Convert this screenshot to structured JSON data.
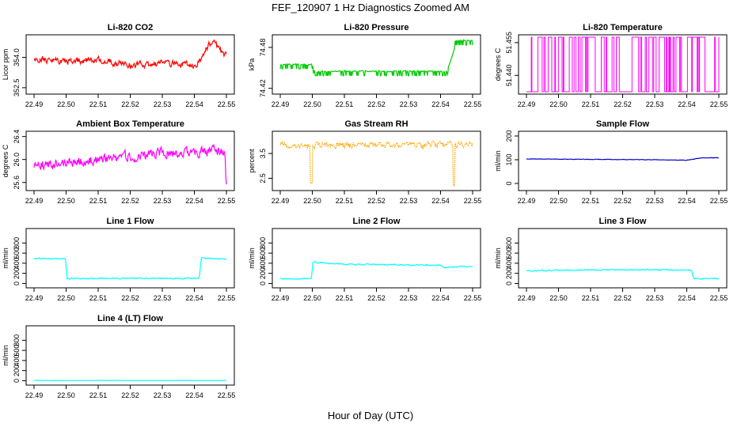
{
  "title": "FEF_120907  1 Hz Diagnostics Zoomed AM",
  "xlabel": "Hour of Day (UTC)",
  "x_ticks": [
    "22.49",
    "22.50",
    "22.51",
    "22.52",
    "22.53",
    "22.54",
    "22.55"
  ],
  "chart_data": [
    {
      "type": "line",
      "title": "Li-820 CO2",
      "ylabel": "Licor ppm",
      "color": "#ff0000",
      "xlim": [
        22.49,
        22.55
      ],
      "ylim": [
        352.3,
        355.0
      ],
      "y_ticks": [
        "352.5",
        "354.0"
      ],
      "y_tick_values": [
        352.5,
        354.0
      ],
      "profile": [
        [
          22.49,
          353.9
        ],
        [
          22.5,
          353.8
        ],
        [
          22.51,
          353.9
        ],
        [
          22.52,
          353.6
        ],
        [
          22.53,
          353.7
        ],
        [
          22.54,
          353.6
        ],
        [
          22.542,
          353.9
        ],
        [
          22.5445,
          354.6
        ],
        [
          22.546,
          354.8
        ],
        [
          22.548,
          354.3
        ],
        [
          22.55,
          354.1
        ]
      ],
      "noise": 0.55,
      "seed": 1
    },
    {
      "type": "line",
      "title": "Li-820 Pressure",
      "ylabel": "kPa",
      "color": "#00cc00",
      "xlim": [
        22.49,
        22.55
      ],
      "ylim": [
        74.415,
        74.495
      ],
      "y_ticks": [
        "74.42",
        "74.48"
      ],
      "y_tick_values": [
        74.42,
        74.48
      ],
      "profile": [
        [
          22.49,
          74.455
        ],
        [
          22.5,
          74.455
        ],
        [
          22.5005,
          74.445
        ],
        [
          22.542,
          74.445
        ],
        [
          22.5445,
          74.48
        ],
        [
          22.5445,
          74.49
        ],
        [
          22.55,
          74.49
        ]
      ],
      "noise": 0.003,
      "dips": true,
      "seed": 2
    },
    {
      "type": "line",
      "title": "Li-820 Temperature",
      "ylabel": "degrees C",
      "color": "#ff00ff",
      "xlim": [
        22.49,
        22.55
      ],
      "ylim": [
        51.4325,
        51.4575
      ],
      "y_ticks": [
        "51.440",
        "51.455"
      ],
      "y_tick_values": [
        51.44,
        51.455
      ],
      "levels": [
        51.4325,
        51.4575
      ],
      "square": true,
      "seed": 3
    },
    {
      "type": "line",
      "title": "Ambient Box Temperature",
      "ylabel": "degrees C",
      "color": "#ff00ff",
      "xlim": [
        22.49,
        22.55
      ],
      "ylim": [
        25.5,
        26.45
      ],
      "y_ticks": [
        "25.6",
        "26.0",
        "26.4"
      ],
      "y_tick_values": [
        25.6,
        26.0,
        26.4
      ],
      "profile": [
        [
          22.49,
          25.9
        ],
        [
          22.5,
          25.95
        ],
        [
          22.51,
          26.0
        ],
        [
          22.52,
          26.05
        ],
        [
          22.53,
          26.1
        ],
        [
          22.54,
          26.15
        ],
        [
          22.5495,
          26.15
        ],
        [
          22.55,
          25.55
        ]
      ],
      "noise": 0.3,
      "seed": 4
    },
    {
      "type": "line",
      "title": "Gas Stream RH",
      "ylabel": "percent",
      "color": "#ffa500",
      "xlim": [
        22.49,
        22.55
      ],
      "ylim": [
        2.1,
        4.3
      ],
      "y_ticks": [
        "2.5",
        "3.5"
      ],
      "y_tick_values": [
        2.5,
        3.5
      ],
      "profile": [
        [
          22.49,
          3.85
        ],
        [
          22.55,
          3.85
        ]
      ],
      "noise": 0.4,
      "spikes": [
        [
          22.4997,
          2.3
        ],
        [
          22.5442,
          2.2
        ]
      ],
      "seed": 5,
      "dotted": true
    },
    {
      "type": "line",
      "title": "Sample Flow",
      "ylabel": "ml/min",
      "color": "#0000cc",
      "xlim": [
        22.49,
        22.55
      ],
      "ylim": [
        -20,
        210
      ],
      "y_ticks": [
        "0",
        "100",
        "200"
      ],
      "y_tick_values": [
        0,
        100,
        200
      ],
      "profile": [
        [
          22.49,
          103
        ],
        [
          22.53,
          100
        ],
        [
          22.54,
          98
        ],
        [
          22.542,
          102
        ],
        [
          22.5445,
          108
        ],
        [
          22.55,
          108
        ]
      ],
      "noise": 3,
      "seed": 6
    },
    {
      "type": "line",
      "title": "Line 1 Flow",
      "ylabel": "ml/min",
      "color": "#00ffff",
      "xlim": [
        22.49,
        22.55
      ],
      "ylim": [
        -40,
        1040
      ],
      "y_ticks": [
        "0",
        "200",
        "400",
        "600",
        "800"
      ],
      "y_tick_values": [
        0,
        200,
        400,
        600,
        800
      ],
      "profile": [
        [
          22.49,
          490
        ],
        [
          22.4998,
          490
        ],
        [
          22.5003,
          100
        ],
        [
          22.5415,
          100
        ],
        [
          22.5422,
          500
        ],
        [
          22.55,
          480
        ]
      ],
      "noise": 40,
      "seed": 7
    },
    {
      "type": "line",
      "title": "Line 2 Flow",
      "ylabel": "ml/min",
      "color": "#00ffff",
      "xlim": [
        22.49,
        22.55
      ],
      "ylim": [
        -40,
        1040
      ],
      "y_ticks": [
        "0",
        "200",
        "400",
        "600",
        "800"
      ],
      "y_tick_values": [
        0,
        200,
        400,
        600,
        800
      ],
      "profile": [
        [
          22.49,
          95
        ],
        [
          22.4997,
          95
        ],
        [
          22.5002,
          420
        ],
        [
          22.51,
          380
        ],
        [
          22.54,
          360
        ],
        [
          22.541,
          320
        ],
        [
          22.55,
          340
        ]
      ],
      "noise": 40,
      "seed": 8
    },
    {
      "type": "line",
      "title": "Line 3 Flow",
      "ylabel": "ml/min",
      "color": "#00ffff",
      "xlim": [
        22.49,
        22.55
      ],
      "ylim": [
        -40,
        1040
      ],
      "y_ticks": [
        "0",
        "200",
        "400",
        "600",
        "800"
      ],
      "y_tick_values": [
        0,
        200,
        400,
        600,
        800
      ],
      "profile": [
        [
          22.49,
          250
        ],
        [
          22.5,
          260
        ],
        [
          22.52,
          270
        ],
        [
          22.54,
          265
        ],
        [
          22.5415,
          265
        ],
        [
          22.5422,
          95
        ],
        [
          22.55,
          95
        ]
      ],
      "noise": 40,
      "seed": 9
    },
    {
      "type": "line",
      "title": "Line 4 (LT) Flow",
      "ylabel": "ml/min",
      "color": "#00ffff",
      "xlim": [
        22.49,
        22.55
      ],
      "ylim": [
        -40,
        1040
      ],
      "y_ticks": [
        "0",
        "200",
        "400",
        "600",
        "800"
      ],
      "y_tick_values": [
        0,
        200,
        400,
        600,
        800
      ],
      "profile": [
        [
          22.49,
          5
        ],
        [
          22.55,
          5
        ]
      ],
      "noise": 3,
      "seed": 10
    }
  ]
}
